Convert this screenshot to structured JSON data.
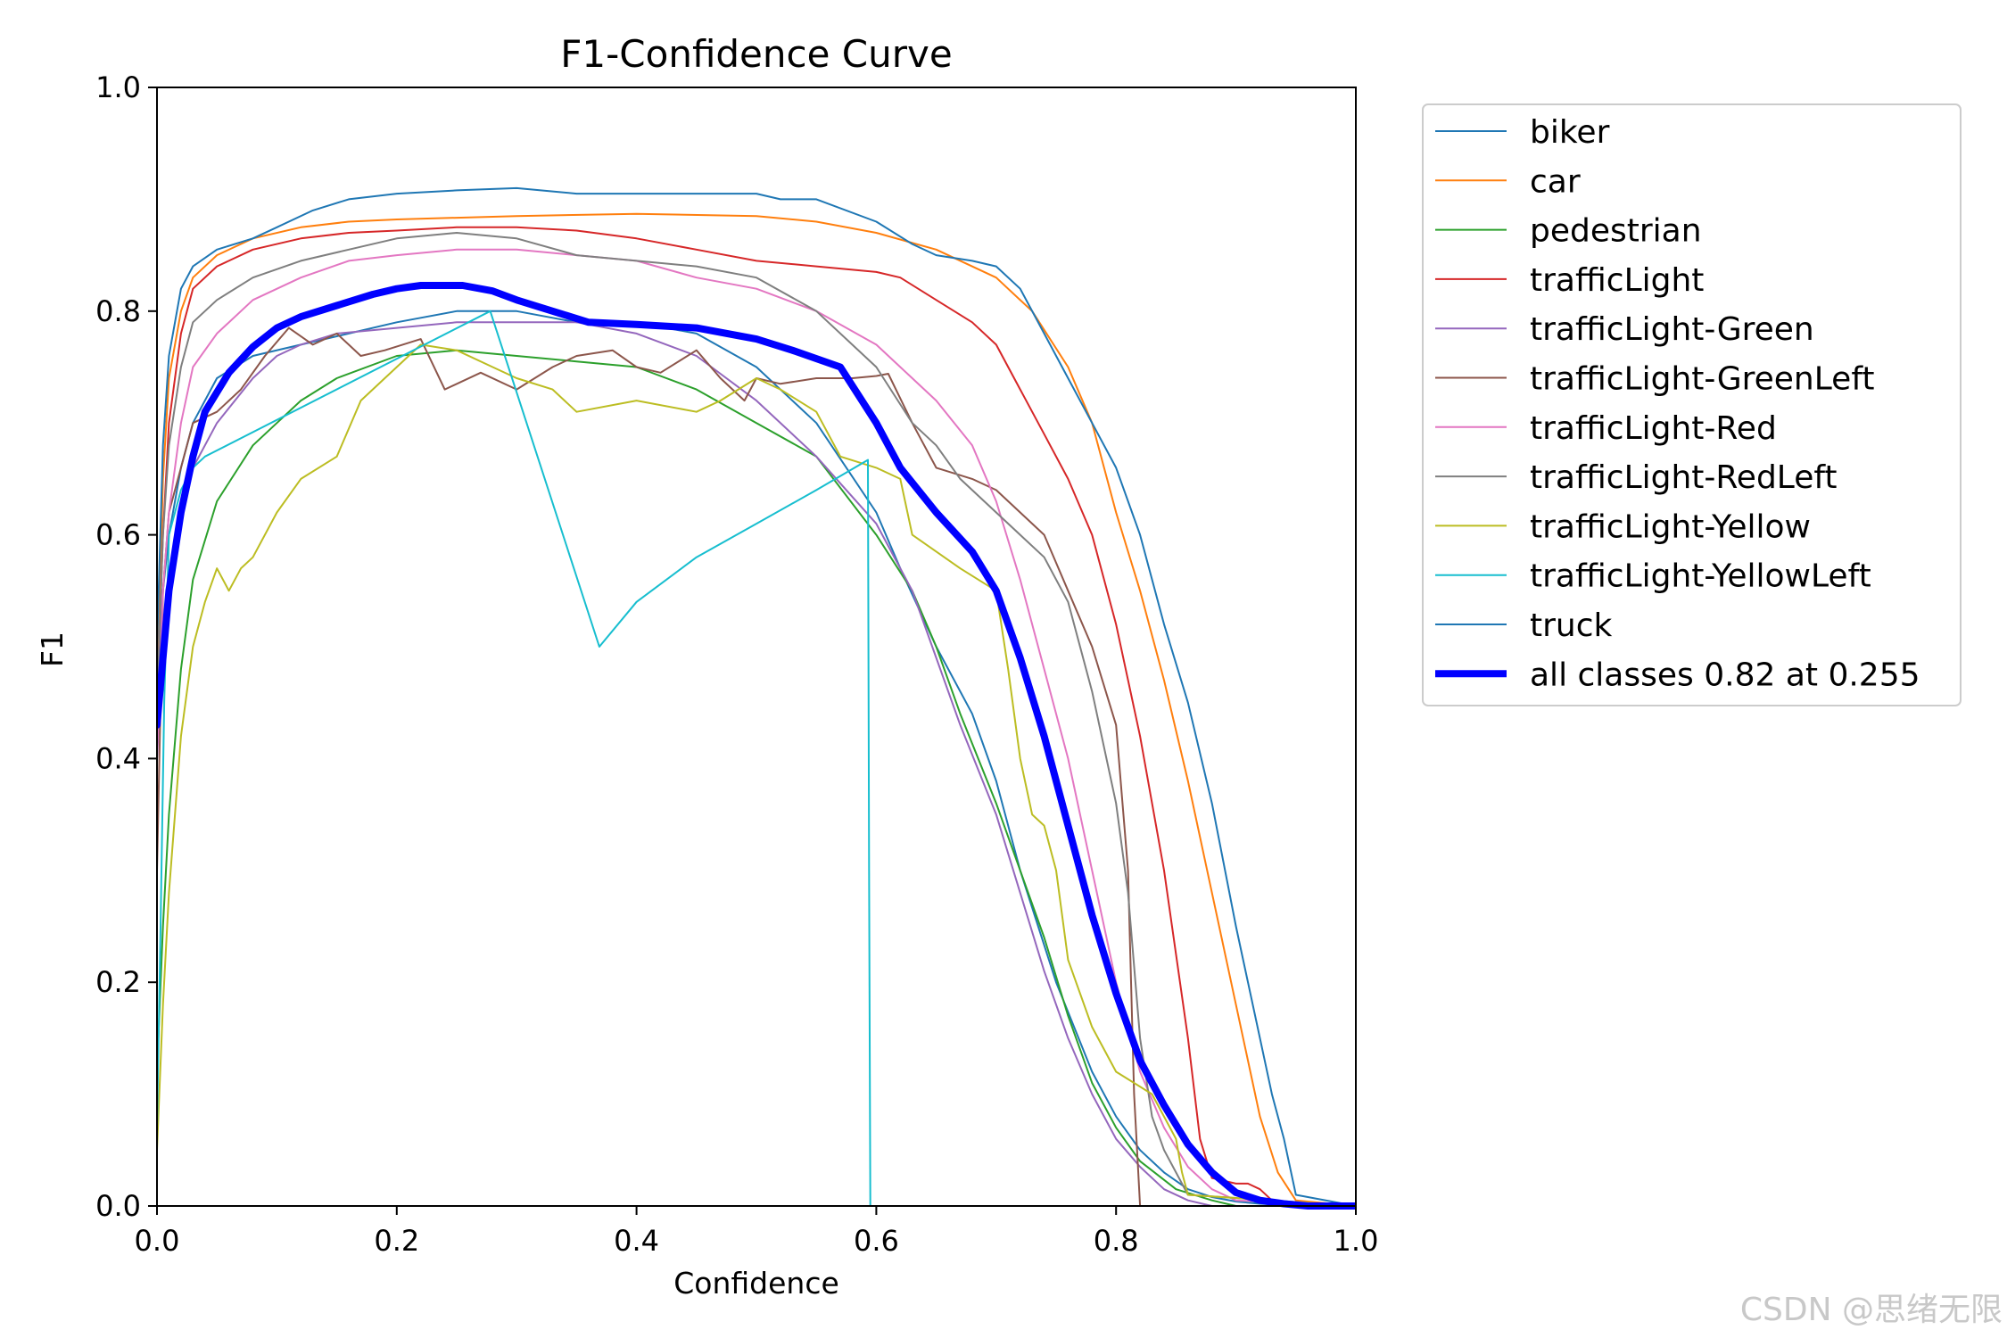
{
  "chart_data": {
    "type": "line",
    "title": "F1-Confidence Curve",
    "xlabel": "Confidence",
    "ylabel": "F1",
    "xlim": [
      0,
      1
    ],
    "ylim": [
      0,
      1
    ],
    "xticks": [
      "0.0",
      "0.2",
      "0.4",
      "0.6",
      "0.8",
      "1.0"
    ],
    "yticks": [
      "0.0",
      "0.2",
      "0.4",
      "0.6",
      "0.8",
      "1.0"
    ],
    "grid": false,
    "legend_position": "outside-right",
    "series": [
      {
        "name": "biker",
        "color": "#1f77b4",
        "width": 2,
        "x": [
          0,
          0.005,
          0.01,
          0.02,
          0.03,
          0.05,
          0.08,
          0.12,
          0.16,
          0.2,
          0.25,
          0.3,
          0.35,
          0.4,
          0.45,
          0.5,
          0.55,
          0.6,
          0.62,
          0.65,
          0.68,
          0.7,
          0.72,
          0.75,
          0.78,
          0.8,
          0.82,
          0.84,
          0.86,
          0.88,
          0.9,
          0.92,
          0.94,
          0.96,
          1.0
        ],
        "y": [
          0.44,
          0.55,
          0.6,
          0.66,
          0.7,
          0.74,
          0.76,
          0.77,
          0.78,
          0.79,
          0.8,
          0.8,
          0.79,
          0.79,
          0.78,
          0.75,
          0.7,
          0.62,
          0.57,
          0.5,
          0.44,
          0.38,
          0.3,
          0.2,
          0.12,
          0.08,
          0.05,
          0.03,
          0.015,
          0.008,
          0.004,
          0.002,
          0.001,
          0,
          0
        ]
      },
      {
        "name": "car",
        "color": "#ff7f0e",
        "width": 2,
        "x": [
          0,
          0.005,
          0.01,
          0.02,
          0.03,
          0.05,
          0.08,
          0.12,
          0.16,
          0.2,
          0.3,
          0.4,
          0.5,
          0.55,
          0.6,
          0.65,
          0.7,
          0.73,
          0.76,
          0.78,
          0.8,
          0.82,
          0.84,
          0.86,
          0.88,
          0.9,
          0.92,
          0.935,
          0.95,
          1.0
        ],
        "y": [
          0.45,
          0.65,
          0.74,
          0.8,
          0.83,
          0.85,
          0.865,
          0.875,
          0.88,
          0.882,
          0.885,
          0.887,
          0.885,
          0.88,
          0.87,
          0.855,
          0.83,
          0.8,
          0.75,
          0.7,
          0.62,
          0.55,
          0.47,
          0.38,
          0.28,
          0.18,
          0.08,
          0.03,
          0.005,
          0
        ]
      },
      {
        "name": "pedestrian",
        "color": "#2ca02c",
        "width": 2,
        "x": [
          0,
          0.005,
          0.01,
          0.02,
          0.03,
          0.05,
          0.08,
          0.1,
          0.12,
          0.15,
          0.2,
          0.25,
          0.3,
          0.35,
          0.4,
          0.45,
          0.5,
          0.55,
          0.6,
          0.63,
          0.65,
          0.67,
          0.7,
          0.72,
          0.74,
          0.76,
          0.78,
          0.8,
          0.82,
          0.85,
          0.88,
          0.9,
          1.0
        ],
        "y": [
          0.12,
          0.25,
          0.35,
          0.48,
          0.56,
          0.63,
          0.68,
          0.7,
          0.72,
          0.74,
          0.76,
          0.765,
          0.76,
          0.755,
          0.75,
          0.73,
          0.7,
          0.67,
          0.6,
          0.55,
          0.5,
          0.44,
          0.36,
          0.3,
          0.24,
          0.17,
          0.11,
          0.07,
          0.04,
          0.015,
          0.005,
          0,
          0
        ]
      },
      {
        "name": "trafficLight",
        "color": "#d62728",
        "width": 2,
        "x": [
          0,
          0.005,
          0.01,
          0.02,
          0.03,
          0.05,
          0.08,
          0.12,
          0.16,
          0.2,
          0.25,
          0.3,
          0.35,
          0.4,
          0.45,
          0.5,
          0.55,
          0.6,
          0.62,
          0.65,
          0.68,
          0.7,
          0.72,
          0.74,
          0.76,
          0.78,
          0.8,
          0.82,
          0.84,
          0.86,
          0.87,
          0.88,
          0.9,
          0.91,
          0.92,
          0.93,
          0.94
        ],
        "y": [
          0.45,
          0.6,
          0.7,
          0.78,
          0.82,
          0.84,
          0.855,
          0.865,
          0.87,
          0.872,
          0.875,
          0.875,
          0.872,
          0.865,
          0.855,
          0.845,
          0.84,
          0.835,
          0.83,
          0.81,
          0.79,
          0.77,
          0.73,
          0.69,
          0.65,
          0.6,
          0.52,
          0.42,
          0.3,
          0.15,
          0.06,
          0.025,
          0.02,
          0.02,
          0.015,
          0.005,
          0
        ]
      },
      {
        "name": "trafficLight-Green",
        "color": "#9467bd",
        "width": 2,
        "x": [
          0,
          0.005,
          0.01,
          0.02,
          0.03,
          0.05,
          0.08,
          0.1,
          0.12,
          0.15,
          0.2,
          0.25,
          0.3,
          0.35,
          0.4,
          0.45,
          0.5,
          0.55,
          0.6,
          0.63,
          0.65,
          0.67,
          0.7,
          0.72,
          0.74,
          0.76,
          0.78,
          0.8,
          0.82,
          0.84,
          0.86,
          0.88,
          1.0
        ],
        "y": [
          0.4,
          0.5,
          0.56,
          0.62,
          0.66,
          0.7,
          0.74,
          0.76,
          0.77,
          0.78,
          0.785,
          0.79,
          0.79,
          0.79,
          0.78,
          0.76,
          0.72,
          0.67,
          0.61,
          0.55,
          0.49,
          0.43,
          0.35,
          0.28,
          0.21,
          0.15,
          0.1,
          0.06,
          0.035,
          0.015,
          0.005,
          0,
          0
        ]
      },
      {
        "name": "trafficLight-GreenLeft",
        "color": "#8c564b",
        "width": 2,
        "x": [
          0,
          0.005,
          0.01,
          0.02,
          0.03,
          0.05,
          0.07,
          0.09,
          0.11,
          0.13,
          0.15,
          0.17,
          0.19,
          0.22,
          0.24,
          0.27,
          0.3,
          0.33,
          0.35,
          0.38,
          0.4,
          0.42,
          0.45,
          0.47,
          0.49,
          0.5,
          0.52,
          0.55,
          0.58,
          0.6,
          0.61,
          0.63,
          0.65,
          0.68,
          0.7,
          0.72,
          0.74,
          0.76,
          0.78,
          0.8,
          0.81,
          0.815,
          0.82,
          1.0
        ],
        "y": [
          0.3,
          0.55,
          0.62,
          0.66,
          0.7,
          0.71,
          0.73,
          0.76,
          0.785,
          0.77,
          0.78,
          0.76,
          0.765,
          0.775,
          0.73,
          0.745,
          0.73,
          0.75,
          0.76,
          0.765,
          0.75,
          0.745,
          0.765,
          0.74,
          0.72,
          0.74,
          0.735,
          0.74,
          0.74,
          0.742,
          0.744,
          0.7,
          0.66,
          0.65,
          0.64,
          0.62,
          0.6,
          0.55,
          0.5,
          0.43,
          0.3,
          0.1,
          0,
          0
        ]
      },
      {
        "name": "trafficLight-Red",
        "color": "#e377c2",
        "width": 2,
        "x": [
          0,
          0.005,
          0.01,
          0.02,
          0.03,
          0.05,
          0.08,
          0.12,
          0.16,
          0.2,
          0.25,
          0.3,
          0.35,
          0.4,
          0.45,
          0.5,
          0.55,
          0.6,
          0.62,
          0.65,
          0.68,
          0.7,
          0.72,
          0.74,
          0.76,
          0.78,
          0.8,
          0.82,
          0.84,
          0.86,
          0.88,
          0.9,
          1.0
        ],
        "y": [
          0.4,
          0.55,
          0.62,
          0.7,
          0.75,
          0.78,
          0.81,
          0.83,
          0.845,
          0.85,
          0.855,
          0.855,
          0.85,
          0.845,
          0.83,
          0.82,
          0.8,
          0.77,
          0.75,
          0.72,
          0.68,
          0.63,
          0.56,
          0.48,
          0.4,
          0.3,
          0.2,
          0.12,
          0.07,
          0.035,
          0.015,
          0.005,
          0
        ]
      },
      {
        "name": "trafficLight-RedLeft",
        "color": "#7f7f7f",
        "width": 2,
        "x": [
          0,
          0.005,
          0.01,
          0.02,
          0.03,
          0.05,
          0.08,
          0.12,
          0.16,
          0.2,
          0.25,
          0.3,
          0.35,
          0.4,
          0.45,
          0.5,
          0.55,
          0.6,
          0.63,
          0.65,
          0.67,
          0.7,
          0.72,
          0.74,
          0.76,
          0.78,
          0.8,
          0.81,
          0.82,
          0.83,
          0.84,
          0.85,
          0.86,
          1.0
        ],
        "y": [
          0.45,
          0.6,
          0.68,
          0.75,
          0.79,
          0.81,
          0.83,
          0.845,
          0.855,
          0.865,
          0.87,
          0.865,
          0.85,
          0.845,
          0.84,
          0.83,
          0.8,
          0.75,
          0.7,
          0.68,
          0.65,
          0.62,
          0.6,
          0.58,
          0.54,
          0.46,
          0.36,
          0.28,
          0.15,
          0.08,
          0.05,
          0.03,
          0.01,
          0
        ]
      },
      {
        "name": "trafficLight-Yellow",
        "color": "#bcbd22",
        "width": 2,
        "x": [
          0,
          0.005,
          0.01,
          0.02,
          0.03,
          0.04,
          0.05,
          0.06,
          0.07,
          0.08,
          0.1,
          0.12,
          0.15,
          0.17,
          0.19,
          0.21,
          0.22,
          0.25,
          0.28,
          0.3,
          0.33,
          0.35,
          0.4,
          0.45,
          0.47,
          0.5,
          0.52,
          0.55,
          0.57,
          0.6,
          0.62,
          0.63,
          0.67,
          0.7,
          0.71,
          0.72,
          0.73,
          0.74,
          0.75,
          0.76,
          0.78,
          0.8,
          0.83,
          0.85,
          0.855,
          0.86,
          1.0
        ],
        "y": [
          0.05,
          0.18,
          0.28,
          0.42,
          0.5,
          0.54,
          0.57,
          0.55,
          0.57,
          0.58,
          0.62,
          0.65,
          0.67,
          0.72,
          0.74,
          0.76,
          0.77,
          0.765,
          0.75,
          0.74,
          0.73,
          0.71,
          0.72,
          0.71,
          0.72,
          0.74,
          0.73,
          0.71,
          0.67,
          0.66,
          0.65,
          0.6,
          0.57,
          0.55,
          0.48,
          0.4,
          0.35,
          0.34,
          0.3,
          0.22,
          0.16,
          0.12,
          0.1,
          0.06,
          0.03,
          0.01,
          0
        ]
      },
      {
        "name": "trafficLight-YellowLeft",
        "color": "#17becf",
        "width": 2,
        "x": [
          0,
          0.003,
          0.006,
          0.01,
          0.02,
          0.03,
          0.04,
          0.278,
          0.369,
          0.4,
          0.45,
          0.5,
          0.55,
          0.593,
          0.594,
          0.595,
          1.0
        ],
        "y": [
          0.07,
          0.25,
          0.45,
          0.6,
          0.64,
          0.66,
          0.67,
          0.8,
          0.5,
          0.54,
          0.58,
          0.61,
          0.64,
          0.667,
          0.3,
          0,
          0
        ]
      },
      {
        "name": "truck",
        "color": "#1f77b4",
        "width": 2,
        "x": [
          0,
          0.005,
          0.01,
          0.02,
          0.03,
          0.05,
          0.08,
          0.1,
          0.13,
          0.16,
          0.2,
          0.25,
          0.3,
          0.35,
          0.4,
          0.45,
          0.5,
          0.52,
          0.55,
          0.6,
          0.63,
          0.65,
          0.68,
          0.7,
          0.72,
          0.74,
          0.76,
          0.78,
          0.8,
          0.82,
          0.84,
          0.86,
          0.88,
          0.9,
          0.92,
          0.93,
          0.94,
          0.95,
          1.0
        ],
        "y": [
          0.5,
          0.68,
          0.76,
          0.82,
          0.84,
          0.855,
          0.865,
          0.875,
          0.89,
          0.9,
          0.905,
          0.908,
          0.91,
          0.905,
          0.905,
          0.905,
          0.905,
          0.9,
          0.9,
          0.88,
          0.86,
          0.85,
          0.845,
          0.84,
          0.82,
          0.78,
          0.74,
          0.7,
          0.66,
          0.6,
          0.52,
          0.45,
          0.36,
          0.25,
          0.15,
          0.1,
          0.06,
          0.01,
          0
        ]
      },
      {
        "name": "all classes 0.82 at 0.255",
        "color": "#0000ff",
        "width": 8,
        "x": [
          0,
          0.01,
          0.02,
          0.03,
          0.04,
          0.06,
          0.08,
          0.1,
          0.12,
          0.15,
          0.18,
          0.2,
          0.22,
          0.255,
          0.28,
          0.3,
          0.33,
          0.36,
          0.4,
          0.45,
          0.5,
          0.53,
          0.57,
          0.6,
          0.62,
          0.65,
          0.68,
          0.7,
          0.72,
          0.74,
          0.76,
          0.78,
          0.8,
          0.82,
          0.84,
          0.86,
          0.88,
          0.9,
          0.92,
          0.94,
          0.96,
          1.0
        ],
        "y": [
          0.43,
          0.55,
          0.62,
          0.67,
          0.71,
          0.745,
          0.768,
          0.785,
          0.795,
          0.805,
          0.815,
          0.82,
          0.823,
          0.823,
          0.818,
          0.81,
          0.8,
          0.79,
          0.788,
          0.785,
          0.775,
          0.765,
          0.75,
          0.7,
          0.66,
          0.62,
          0.585,
          0.55,
          0.49,
          0.42,
          0.34,
          0.26,
          0.19,
          0.13,
          0.09,
          0.055,
          0.03,
          0.012,
          0.005,
          0.002,
          0,
          0
        ]
      }
    ],
    "watermark": "CSDN @思绪无限"
  }
}
